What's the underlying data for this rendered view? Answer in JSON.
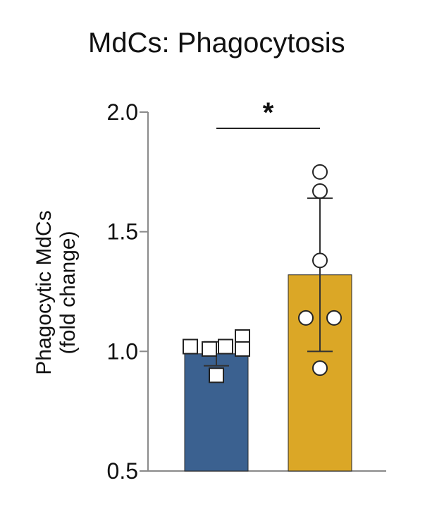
{
  "chart_data": {
    "type": "bar",
    "title": "MdCs: Phagocytosis",
    "ylabel_lines": [
      "Phagocytic MdCs",
      "(fold change)"
    ],
    "xlabel": "",
    "ylim": [
      0.5,
      2.0
    ],
    "yticks": [
      "0.5",
      "1.0",
      "1.5",
      "2.0"
    ],
    "ytick_values": [
      0.5,
      1.0,
      1.5,
      2.0
    ],
    "grid": false,
    "legend": "none",
    "bars": [
      {
        "mean": 0.99,
        "sd": 0.05,
        "color": "#3b6190",
        "marker": "square",
        "points": [
          1.02,
          1.01,
          1.02,
          1.06,
          1.01,
          0.9
        ]
      },
      {
        "mean": 1.32,
        "sd": 0.32,
        "color": "#dba726",
        "marker": "circle",
        "points": [
          1.75,
          1.67,
          1.38,
          1.14,
          1.14,
          0.93
        ]
      }
    ],
    "significance": {
      "label": "*",
      "between": [
        0,
        1
      ]
    }
  }
}
